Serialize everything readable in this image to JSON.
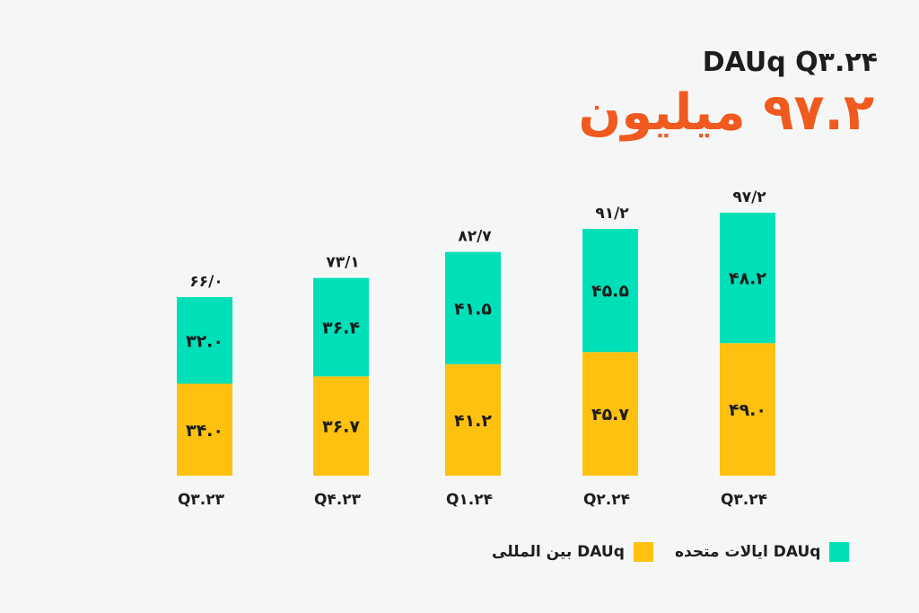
{
  "header": {
    "title": "DAUq Q۳.۲۴",
    "subtitle": "۹۷.۲ میلیون"
  },
  "colors": {
    "us": "#00e0b8",
    "international": "#fec10f",
    "accent": "#f05a1e",
    "text": "#1d1d1d"
  },
  "legend": {
    "us_label": "DAUq ایالات متحده",
    "international_label": "DAUq بین المللی"
  },
  "chart_data": {
    "type": "bar",
    "stacked": true,
    "categories": [
      "Q۳.۲۳",
      "Q۴.۲۳",
      "Q۱.۲۴",
      "Q۲.۲۴",
      "Q۳.۲۴"
    ],
    "series": [
      {
        "name": "DAUq بین المللی",
        "values": [
          34.0,
          36.7,
          41.2,
          45.7,
          49.0
        ],
        "labels": [
          "۳۴.۰",
          "۳۶.۷",
          "۴۱.۲",
          "۴۵.۷",
          "۴۹.۰"
        ]
      },
      {
        "name": "DAUq ایالات متحده",
        "values": [
          32.0,
          36.4,
          41.5,
          45.5,
          48.2
        ],
        "labels": [
          "۳۲.۰",
          "۳۶.۴",
          "۴۱.۵",
          "۴۵.۵",
          "۴۸.۲"
        ]
      }
    ],
    "totals": [
      66.0,
      73.1,
      82.7,
      91.2,
      97.2
    ],
    "total_labels": [
      "۶۶/۰",
      "۷۳/۱",
      "۸۲/۷",
      "۹۱/۲",
      "۹۷/۲"
    ],
    "ylim": [
      0,
      97.2
    ],
    "grid": false,
    "legend_position": "bottom"
  }
}
